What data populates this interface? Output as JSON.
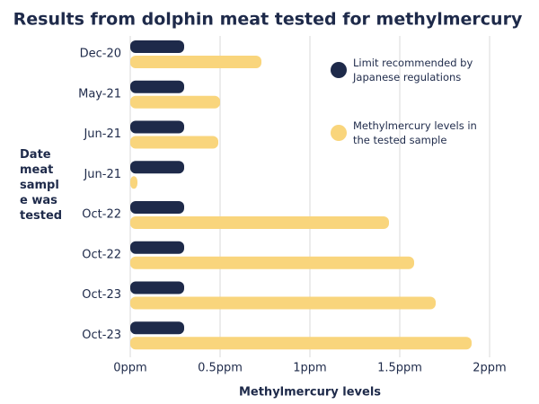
{
  "chart_data": {
    "type": "barh",
    "title": "Results from dolphin meat tested for methylmercury",
    "xlabel": "Methylmercury levels",
    "ylabel": "Date meat sample was tested",
    "categories": [
      "Dec-20",
      "May-21",
      "Jun-21",
      "Jun-21",
      "Oct-22",
      "Oct-22",
      "Oct-23",
      "Oct-23"
    ],
    "series": [
      {
        "name": "Limit recommended by Japanese regulations",
        "color": "#1e2a4a",
        "values": [
          0.3,
          0.3,
          0.3,
          0.3,
          0.3,
          0.3,
          0.3,
          0.3
        ]
      },
      {
        "name": "Methylmercury levels in the tested sample",
        "color": "#f9d57c",
        "values": [
          0.73,
          0.5,
          0.49,
          0.04,
          1.44,
          1.58,
          1.7,
          1.9
        ]
      }
    ],
    "xlim": [
      0,
      2
    ],
    "xticks": [
      {
        "value": 0,
        "label": "0ppm"
      },
      {
        "value": 0.5,
        "label": "0.5ppm"
      },
      {
        "value": 1,
        "label": "1ppm"
      },
      {
        "value": 1.5,
        "label": "1.5ppm"
      },
      {
        "value": 2,
        "label": "2ppm"
      }
    ],
    "grid": true,
    "legend": "upper right"
  }
}
